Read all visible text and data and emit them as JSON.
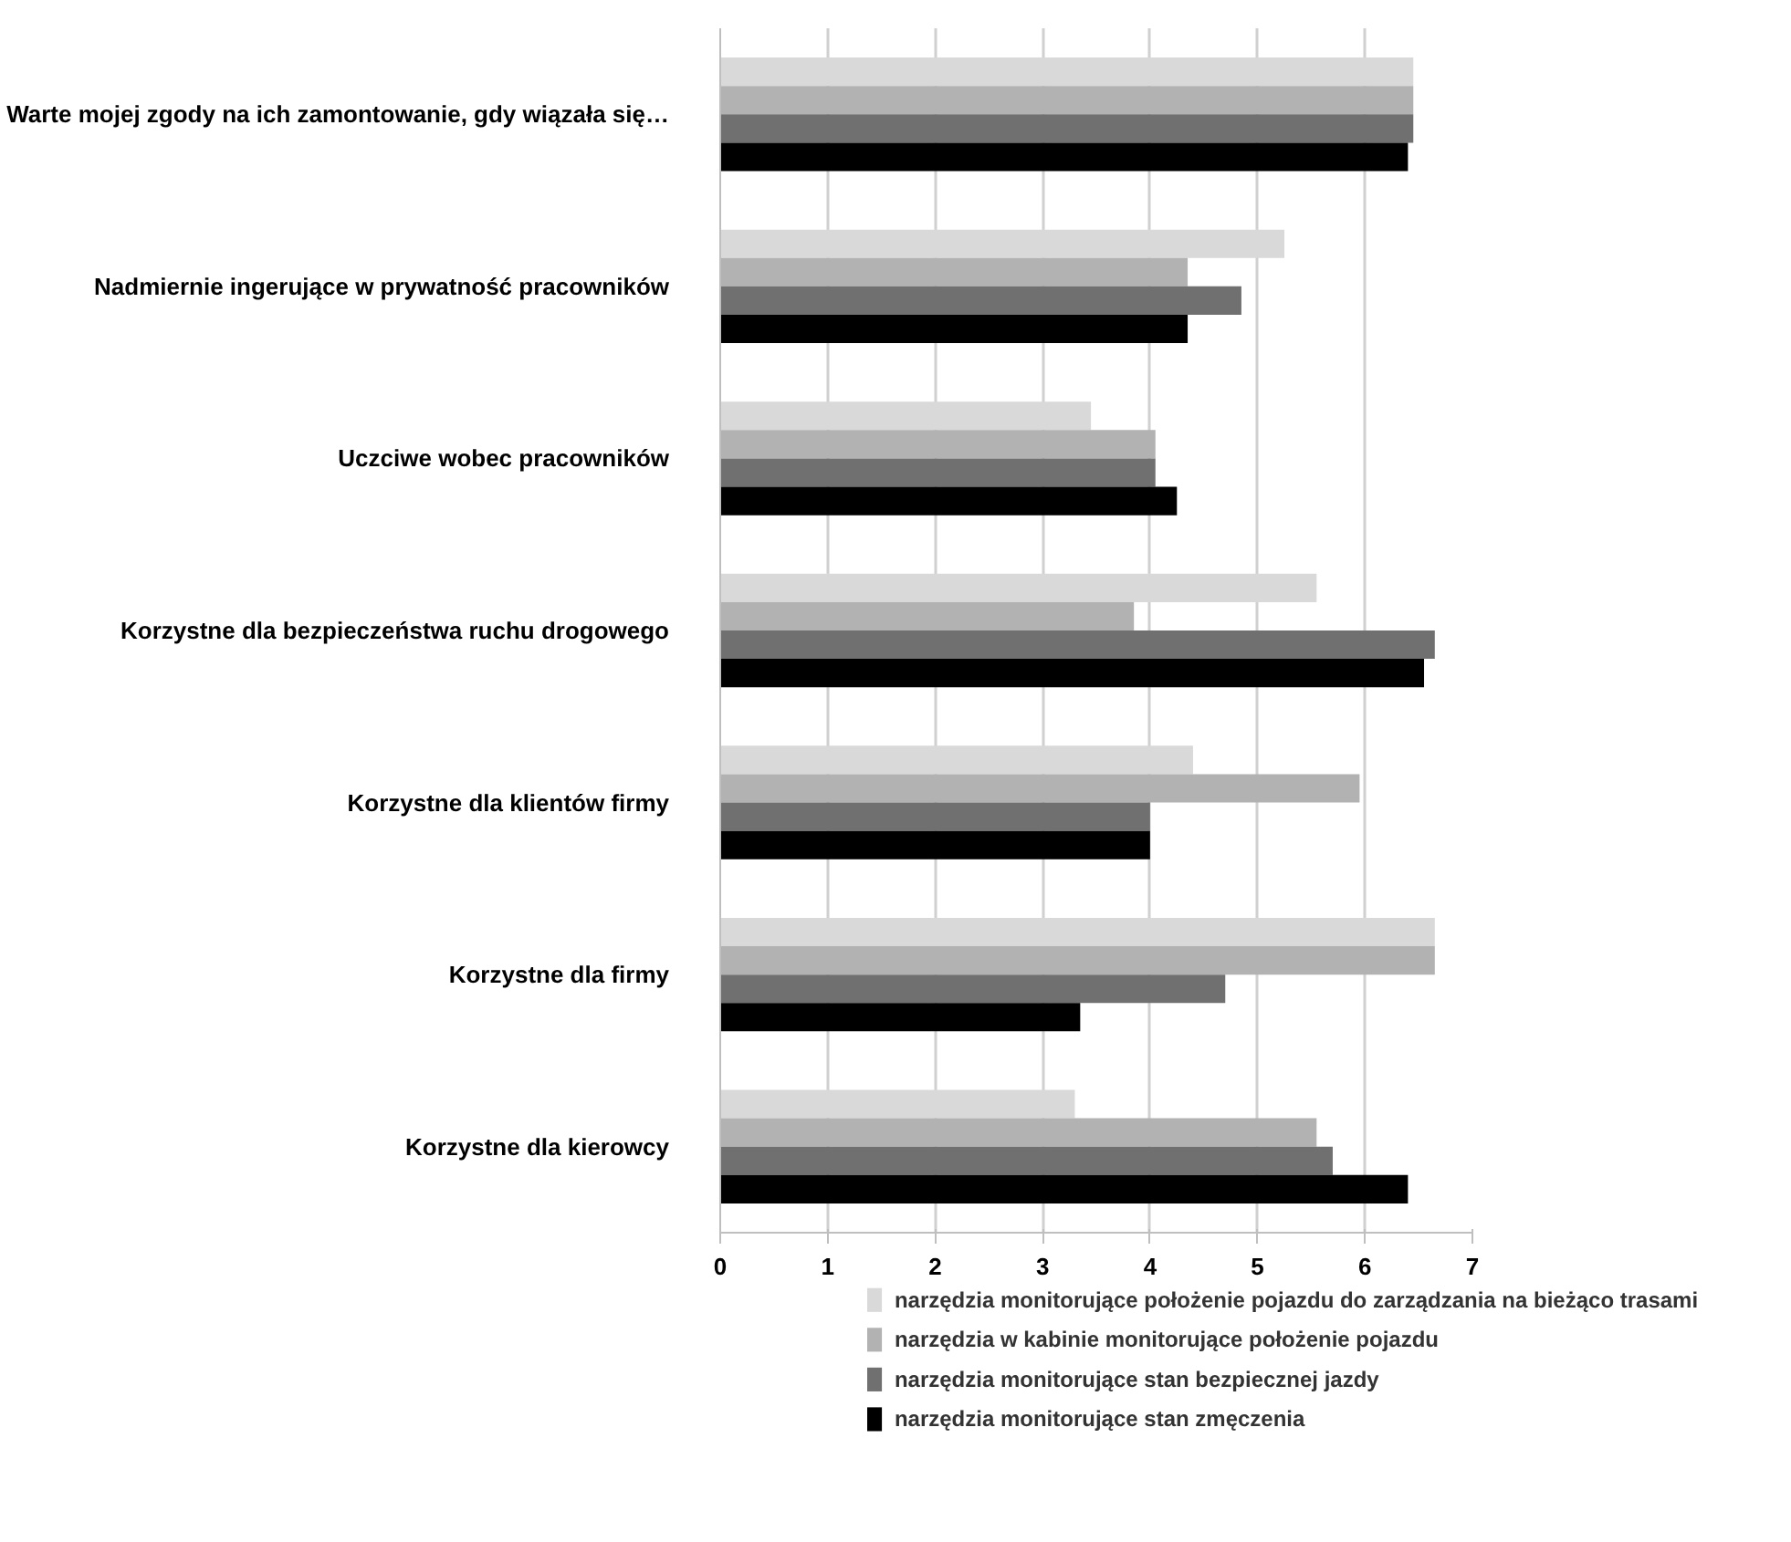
{
  "chart_data": {
    "type": "bar",
    "orientation": "horizontal",
    "categories": [
      "Warte mojej zgody na ich zamontowanie, gdy wiązała się…",
      "Nadmiernie ingerujące w prywatność pracowników",
      "Uczciwe wobec pracowników",
      "Korzystne dla bezpieczeństwa ruchu drogowego",
      "Korzystne dla klientów firmy",
      "Korzystne dla firmy",
      "Korzystne dla kierowcy"
    ],
    "series": [
      {
        "name": "narzędzia monitorujące położenie pojazdu do zarządzania na bieżąco trasami",
        "color": "#d9d9d9",
        "values": [
          6.45,
          5.25,
          3.45,
          5.55,
          4.4,
          6.65,
          3.3
        ]
      },
      {
        "name": "narzędzia w kabinie monitorujące położenie pojazdu",
        "color": "#b2b2b2",
        "values": [
          6.45,
          4.35,
          4.05,
          3.85,
          5.95,
          6.65,
          5.55
        ]
      },
      {
        "name": "narzędzia monitorujące stan bezpiecznej jazdy",
        "color": "#707070",
        "values": [
          6.45,
          4.85,
          4.05,
          6.65,
          4.0,
          4.7,
          5.7
        ]
      },
      {
        "name": "narzędzia monitorujące stan zmęczenia",
        "color": "#000000",
        "values": [
          6.4,
          4.35,
          4.25,
          6.55,
          4.0,
          3.35,
          6.4
        ]
      }
    ],
    "xlim": [
      0,
      7
    ],
    "xticks": [
      0,
      1,
      2,
      3,
      4,
      5,
      6,
      7
    ],
    "grid": "x",
    "legend": "bottom"
  }
}
